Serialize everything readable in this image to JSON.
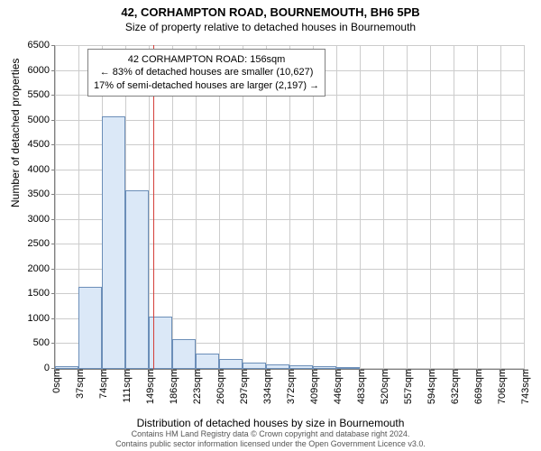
{
  "header": {
    "title": "42, CORHAMPTON ROAD, BOURNEMOUTH, BH6 5PB",
    "subtitle": "Size of property relative to detached houses in Bournemouth"
  },
  "chart": {
    "type": "histogram",
    "ylabel": "Number of detached properties",
    "xlabel": "Distribution of detached houses by size in Bournemouth",
    "ylim": [
      0,
      6500
    ],
    "ytick_step": 500,
    "yticks": [
      0,
      500,
      1000,
      1500,
      2000,
      2500,
      3000,
      3500,
      4000,
      4500,
      5000,
      5500,
      6000,
      6500
    ],
    "xticks": [
      "0sqm",
      "37sqm",
      "74sqm",
      "111sqm",
      "149sqm",
      "186sqm",
      "223sqm",
      "260sqm",
      "297sqm",
      "334sqm",
      "372sqm",
      "409sqm",
      "446sqm",
      "483sqm",
      "520sqm",
      "557sqm",
      "594sqm",
      "632sqm",
      "669sqm",
      "706sqm",
      "743sqm"
    ],
    "bar_values": [
      55,
      1650,
      5080,
      3600,
      1050,
      600,
      300,
      200,
      130,
      90,
      80,
      50,
      30,
      0,
      0,
      0,
      0,
      0,
      0,
      0
    ],
    "bar_fill": "#dbe8f7",
    "bar_border": "#6b8eb8",
    "grid_color": "#cccccc",
    "axis_color": "#808080",
    "background": "#ffffff",
    "refline": {
      "value_sqm": 156,
      "x_max_sqm": 743,
      "color": "#d43f3a"
    },
    "annot": {
      "line1": "42 CORHAMPTON ROAD: 156sqm",
      "line2": "← 83% of detached houses are smaller (10,627)",
      "line3": "17% of semi-detached houses are larger (2,197) →"
    }
  },
  "footer": {
    "line1": "Contains HM Land Registry data © Crown copyright and database right 2024.",
    "line2": "Contains public sector information licensed under the Open Government Licence v3.0."
  }
}
